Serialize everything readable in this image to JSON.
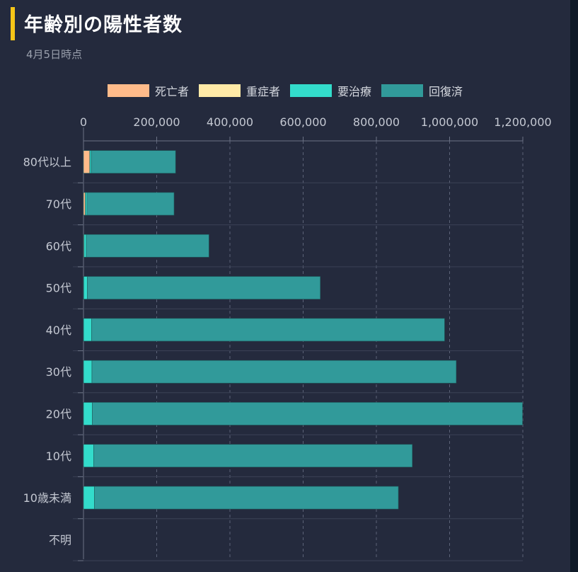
{
  "header": {
    "title": "年齢別の陽性者数",
    "subtitle": "4月5日時点"
  },
  "colors": {
    "background": "#242a3d",
    "title_accent": "#f5c518"
  },
  "legend": [
    {
      "label": "死亡者",
      "color": "#ffbb8a"
    },
    {
      "label": "重症者",
      "color": "#ffeaa7"
    },
    {
      "label": "要治療",
      "color": "#33dccb"
    },
    {
      "label": "回復済",
      "color": "#319a9a"
    }
  ],
  "chart_data": {
    "type": "bar",
    "orientation": "horizontal",
    "stacked": true,
    "categories": [
      "80代以上",
      "70代",
      "60代",
      "50代",
      "40代",
      "30代",
      "20代",
      "10代",
      "10歳未満",
      "不明"
    ],
    "series": [
      {
        "name": "死亡者",
        "color": "#ffbb8a",
        "values": [
          17000,
          5000,
          1500,
          500,
          200,
          100,
          50,
          0,
          0,
          0
        ]
      },
      {
        "name": "重症者",
        "color": "#ffeaa7",
        "values": [
          500,
          300,
          200,
          100,
          50,
          0,
          0,
          0,
          0,
          0
        ]
      },
      {
        "name": "要治療",
        "color": "#33dccb",
        "values": [
          4000,
          4000,
          6000,
          10000,
          22000,
          23000,
          24000,
          28000,
          30000,
          0
        ]
      },
      {
        "name": "回復済",
        "color": "#319a9a",
        "values": [
          230000,
          238000,
          335000,
          636000,
          964000,
          995000,
          1175000,
          870000,
          830000,
          0
        ]
      }
    ],
    "xlim": [
      0,
      1200000
    ],
    "ticks": [
      0,
      200000,
      400000,
      600000,
      800000,
      1000000,
      1200000
    ],
    "tick_labels": [
      "0",
      "200,000",
      "400,000",
      "600,000",
      "800,000",
      "1,000,000",
      "1,200,000"
    ],
    "grid": true,
    "legend_position": "top"
  }
}
